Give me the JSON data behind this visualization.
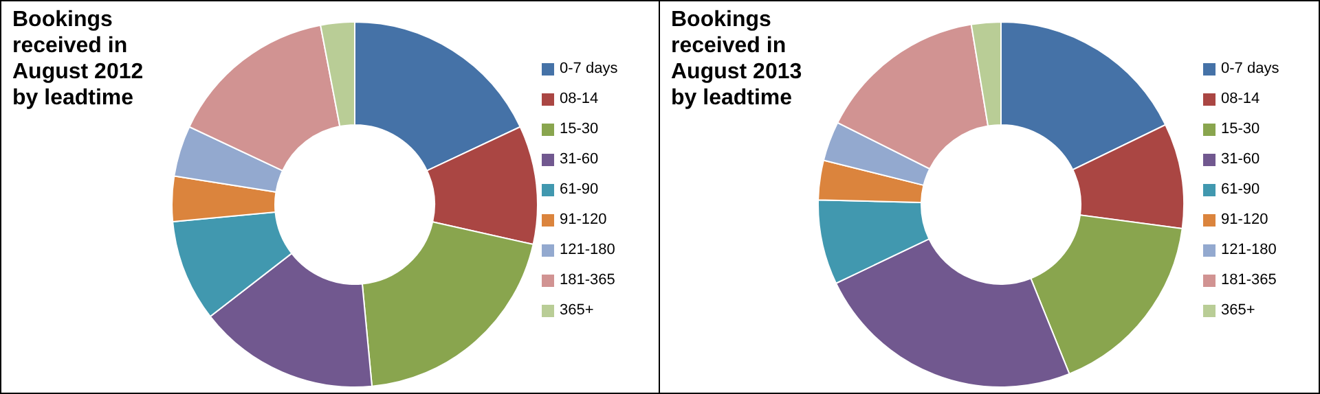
{
  "chart_data": [
    {
      "type": "donut",
      "title": "Bookings received in August 2012 by leadtime",
      "legend": "right",
      "categories": [
        "0-7 days",
        "08-14",
        "15-30",
        "31-60",
        "61-90",
        "91-120",
        "121-180",
        "181-365",
        "365+"
      ],
      "values": [
        18,
        10.5,
        20,
        16,
        9,
        4,
        4.5,
        15,
        3
      ],
      "colors": [
        "#4572a7",
        "#aa4643",
        "#89a54e",
        "#71588f",
        "#4198af",
        "#db843d",
        "#93a9cf",
        "#d19392",
        "#b9cd96"
      ]
    },
    {
      "type": "donut",
      "title": "Bookings received in August 2013 by leadtime",
      "legend": "right",
      "categories": [
        "0-7 days",
        "08-14",
        "15-30",
        "31-60",
        "61-90",
        "91-120",
        "121-180",
        "181-365",
        "365+"
      ],
      "values": [
        17.8,
        9.3,
        16.8,
        24,
        7.5,
        3.5,
        3.5,
        15,
        2.6
      ],
      "colors": [
        "#4572a7",
        "#aa4643",
        "#89a54e",
        "#71588f",
        "#4198af",
        "#db843d",
        "#93a9cf",
        "#d19392",
        "#b9cd96"
      ]
    }
  ]
}
